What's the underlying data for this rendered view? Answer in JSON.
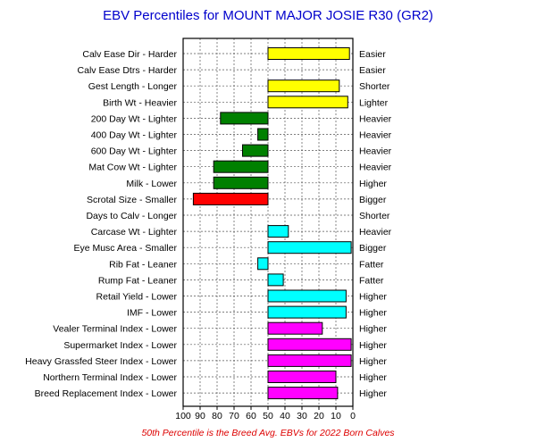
{
  "chart_data": {
    "type": "bar",
    "orientation": "horizontal",
    "title": "EBV Percentiles for MOUNT MAJOR JOSIE R30 (GR2)",
    "footnote": "50th Percentile is the Breed Avg. EBVs for 2022 Born Calves",
    "x_axis": {
      "reversed": true,
      "xlim": [
        100,
        0
      ],
      "ticks": [
        "100",
        "90",
        "80",
        "70",
        "60",
        "50",
        "40",
        "30",
        "20",
        "10",
        "0"
      ],
      "grid": true,
      "baseline": 50
    },
    "categories": [
      "Calv Ease Dir - Harder",
      "Calv Ease Dtrs - Harder",
      "Gest Length - Longer",
      "Birth Wt - Heavier",
      "200 Day Wt - Lighter",
      "400 Day Wt - Lighter",
      "600 Day Wt - Lighter",
      "Mat Cow Wt - Lighter",
      "Milk - Lower",
      "Scrotal Size - Smaller",
      "Days to Calv - Longer",
      "Carcase Wt - Lighter",
      "Eye Musc Area - Smaller",
      "Rib Fat - Leaner",
      "Rump Fat - Leaner",
      "Retail Yield - Lower",
      "IMF - Lower",
      "Vealer Terminal Index - Lower",
      "Supermarket Index - Lower",
      "Heavy Grassfed Steer Index - Lower",
      "Northern Terminal Index - Lower",
      "Breed Replacement Index - Lower"
    ],
    "right_labels": [
      "Easier",
      "Easier",
      "Shorter",
      "Lighter",
      "Heavier",
      "Heavier",
      "Heavier",
      "Heavier",
      "Higher",
      "Bigger",
      "Shorter",
      "Heavier",
      "Bigger",
      "Fatter",
      "Fatter",
      "Higher",
      "Higher",
      "Higher",
      "Higher",
      "Higher",
      "Higher",
      "Higher"
    ],
    "values": [
      2,
      null,
      8,
      3,
      78,
      56,
      65,
      82,
      82,
      94,
      null,
      38,
      1,
      56,
      41,
      4,
      4,
      18,
      1,
      1,
      10,
      9
    ],
    "colors": [
      "#ffff00",
      null,
      "#ffff00",
      "#ffff00",
      "#008000",
      "#008000",
      "#008000",
      "#008000",
      "#008000",
      "#ff0000",
      null,
      "#00ffff",
      "#00ffff",
      "#00ffff",
      "#00ffff",
      "#00ffff",
      "#00ffff",
      "#ff00ff",
      "#ff00ff",
      "#ff00ff",
      "#ff00ff",
      "#ff00ff"
    ],
    "title_color": "#0000cc",
    "footnote_color": "#dd0000"
  }
}
